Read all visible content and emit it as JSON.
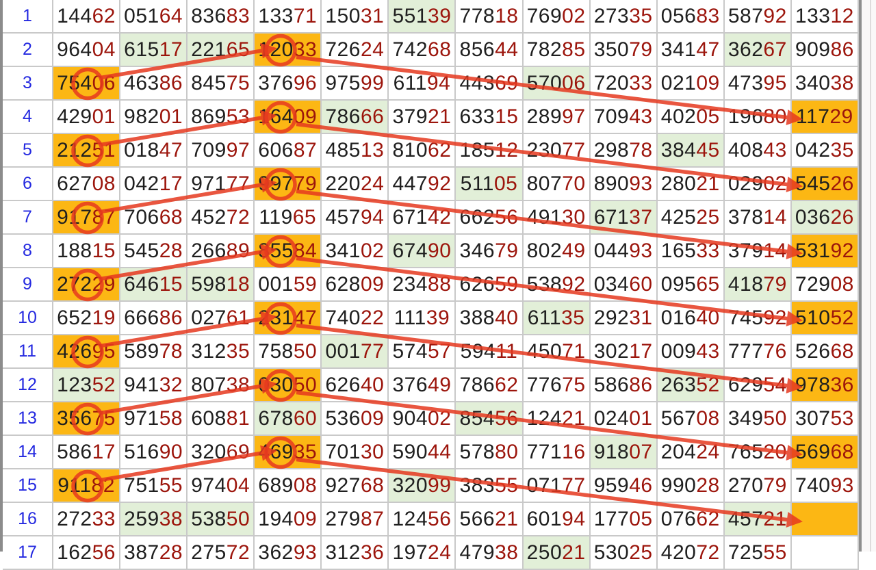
{
  "palette": {
    "highlight_orange": "#fcb714",
    "highlight_green": "#e2efd8",
    "digit_black": "#1f1f1f",
    "digit_red": "#9c150c",
    "row_number_blue": "#2429e0",
    "grid_line_gray": "#c9c9c9",
    "annotation_red": "#e6391f"
  },
  "digit_style": {
    "black_digits": 3,
    "red_digits": 2
  },
  "table": {
    "rows": [
      {
        "n": "1",
        "cells": [
          "14462",
          "05164",
          "83683",
          "13371",
          "15031",
          "55139",
          "77818",
          "76902",
          "27335",
          "05683",
          "58792",
          "13312"
        ],
        "green": [
          6
        ],
        "orange": []
      },
      {
        "n": "2",
        "cells": [
          "96404",
          "61517",
          "22165",
          "12033",
          "72624",
          "74268",
          "85644",
          "78285",
          "35079",
          "34147",
          "36267",
          "90986"
        ],
        "green": [
          2,
          3,
          11
        ],
        "orange": [
          4
        ]
      },
      {
        "n": "3",
        "cells": [
          "75406",
          "46386",
          "84575",
          "37696",
          "97599",
          "61194",
          "44369",
          "57006",
          "72033",
          "02109",
          "47395",
          "34038"
        ],
        "green": [
          8
        ],
        "orange": [
          1
        ]
      },
      {
        "n": "4",
        "cells": [
          "42901",
          "98201",
          "86953",
          "16409",
          "78666",
          "37921",
          "63315",
          "28997",
          "70943",
          "40205",
          "19680",
          "11729"
        ],
        "green": [
          5
        ],
        "orange": [
          4,
          12
        ]
      },
      {
        "n": "5",
        "cells": [
          "21251",
          "01847",
          "70997",
          "60687",
          "48513",
          "81062",
          "18512",
          "23077",
          "29878",
          "38445",
          "40843",
          "04235"
        ],
        "green": [
          10
        ],
        "orange": [
          1
        ]
      },
      {
        "n": "6",
        "cells": [
          "62708",
          "04217",
          "97177",
          "99779",
          "22024",
          "44792",
          "51105",
          "80770",
          "89093",
          "28021",
          "02902",
          "54526"
        ],
        "green": [
          7
        ],
        "orange": [
          4,
          12
        ]
      },
      {
        "n": "7",
        "cells": [
          "91787",
          "70668",
          "45272",
          "11965",
          "45794",
          "67142",
          "66256",
          "49130",
          "67137",
          "42525",
          "37814",
          "03626"
        ],
        "green": [
          9,
          12
        ],
        "orange": [
          1
        ]
      },
      {
        "n": "8",
        "cells": [
          "18815",
          "54528",
          "26689",
          "85584",
          "34102",
          "67490",
          "34679",
          "80249",
          "04493",
          "16533",
          "37914",
          "53192"
        ],
        "green": [
          6
        ],
        "orange": [
          4,
          12
        ]
      },
      {
        "n": "9",
        "cells": [
          "27229",
          "64615",
          "59818",
          "00159",
          "62809",
          "23488",
          "62659",
          "53892",
          "03460",
          "09565",
          "41879",
          "72908"
        ],
        "green": [
          2,
          3,
          11
        ],
        "orange": [
          1
        ]
      },
      {
        "n": "10",
        "cells": [
          "65219",
          "66686",
          "02761",
          "23147",
          "74022",
          "11139",
          "38840",
          "61135",
          "29231",
          "01640",
          "74592",
          "51052"
        ],
        "green": [
          8
        ],
        "orange": [
          4,
          12
        ]
      },
      {
        "n": "11",
        "cells": [
          "42695",
          "58978",
          "31235",
          "75850",
          "00177",
          "57457",
          "59411",
          "45071",
          "30217",
          "00943",
          "77776",
          "52668"
        ],
        "green": [
          5
        ],
        "orange": [
          1
        ]
      },
      {
        "n": "12",
        "cells": [
          "12352",
          "94132",
          "80738",
          "03050",
          "62640",
          "37649",
          "78662",
          "77675",
          "58686",
          "26352",
          "62954",
          "97836"
        ],
        "green": [
          1,
          10
        ],
        "orange": [
          4,
          12
        ]
      },
      {
        "n": "13",
        "cells": [
          "35675",
          "97158",
          "60881",
          "67860",
          "53609",
          "90402",
          "85456",
          "12421",
          "02401",
          "56708",
          "34950",
          "30753"
        ],
        "green": [
          4,
          7
        ],
        "orange": [
          1
        ]
      },
      {
        "n": "14",
        "cells": [
          "58617",
          "51690",
          "32069",
          "46935",
          "70130",
          "59044",
          "57880",
          "77116",
          "91807",
          "20424",
          "76520",
          "56968"
        ],
        "green": [
          9
        ],
        "orange": [
          4,
          12
        ]
      },
      {
        "n": "15",
        "cells": [
          "91182",
          "75155",
          "97404",
          "68908",
          "92768",
          "32099",
          "38355",
          "07177",
          "95946",
          "99028",
          "27079",
          "74093"
        ],
        "green": [
          6
        ],
        "orange": [
          1
        ]
      },
      {
        "n": "16",
        "cells": [
          "27233",
          "25938",
          "53850",
          "19409",
          "27987",
          "12456",
          "56621",
          "60194",
          "17705",
          "07662",
          "45721",
          ""
        ],
        "green": [
          2,
          3,
          11
        ],
        "orange": [
          12
        ]
      },
      {
        "n": "17",
        "cells": [
          "16256",
          "38728",
          "27572",
          "36293",
          "31236",
          "19724",
          "47938",
          "25021",
          "53025",
          "42072",
          "72555",
          ""
        ],
        "green": [
          8
        ],
        "orange": []
      }
    ]
  },
  "annotations": {
    "circles": [
      {
        "row": 3,
        "col": 1
      },
      {
        "row": 5,
        "col": 1
      },
      {
        "row": 7,
        "col": 1
      },
      {
        "row": 9,
        "col": 1
      },
      {
        "row": 11,
        "col": 1
      },
      {
        "row": 13,
        "col": 1
      },
      {
        "row": 15,
        "col": 1
      },
      {
        "row": 2,
        "col": 4
      },
      {
        "row": 4,
        "col": 4
      },
      {
        "row": 6,
        "col": 4
      },
      {
        "row": 8,
        "col": 4
      },
      {
        "row": 10,
        "col": 4
      },
      {
        "row": 12,
        "col": 4
      },
      {
        "row": 14,
        "col": 4
      }
    ],
    "arrows": [
      {
        "from": [
          3,
          1
        ],
        "to": [
          2,
          4
        ]
      },
      {
        "from": [
          5,
          1
        ],
        "to": [
          4,
          4
        ]
      },
      {
        "from": [
          7,
          1
        ],
        "to": [
          6,
          4
        ]
      },
      {
        "from": [
          9,
          1
        ],
        "to": [
          8,
          4
        ]
      },
      {
        "from": [
          11,
          1
        ],
        "to": [
          10,
          4
        ]
      },
      {
        "from": [
          13,
          1
        ],
        "to": [
          12,
          4
        ]
      },
      {
        "from": [
          15,
          1
        ],
        "to": [
          14,
          4
        ]
      },
      {
        "from": [
          2,
          4
        ],
        "to": [
          4,
          12
        ]
      },
      {
        "from": [
          4,
          4
        ],
        "to": [
          6,
          12
        ]
      },
      {
        "from": [
          6,
          4
        ],
        "to": [
          8,
          12
        ]
      },
      {
        "from": [
          8,
          4
        ],
        "to": [
          10,
          12
        ]
      },
      {
        "from": [
          10,
          4
        ],
        "to": [
          12,
          12
        ]
      },
      {
        "from": [
          12,
          4
        ],
        "to": [
          14,
          12
        ]
      },
      {
        "from": [
          14,
          4
        ],
        "to": [
          16,
          12
        ]
      }
    ]
  }
}
